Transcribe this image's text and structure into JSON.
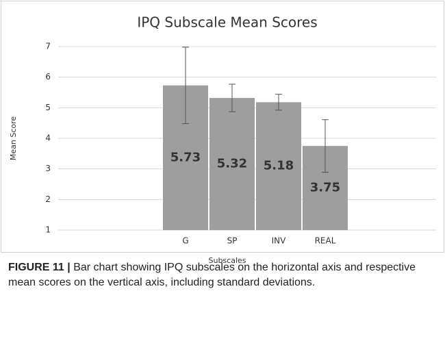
{
  "chart_data": {
    "type": "bar",
    "title": "IPQ Subscale Mean Scores",
    "x_label": "Subscales",
    "y_label": "Mean Score",
    "categories": [
      "G",
      "SP",
      "INV",
      "REAL"
    ],
    "values": [
      5.73,
      5.32,
      5.18,
      3.75
    ],
    "errors": [
      1.25,
      0.45,
      0.26,
      0.86
    ],
    "color": "#9e9e9e",
    "ylim": [
      1,
      7
    ],
    "yticks": [
      1,
      2,
      3,
      4,
      5,
      6,
      7
    ],
    "grid": true
  },
  "caption": {
    "label": "FIGURE 11 |",
    "text": "Bar chart showing IPQ subscales on the horizontal axis and respective mean scores on the vertical axis, including standard deviations."
  }
}
